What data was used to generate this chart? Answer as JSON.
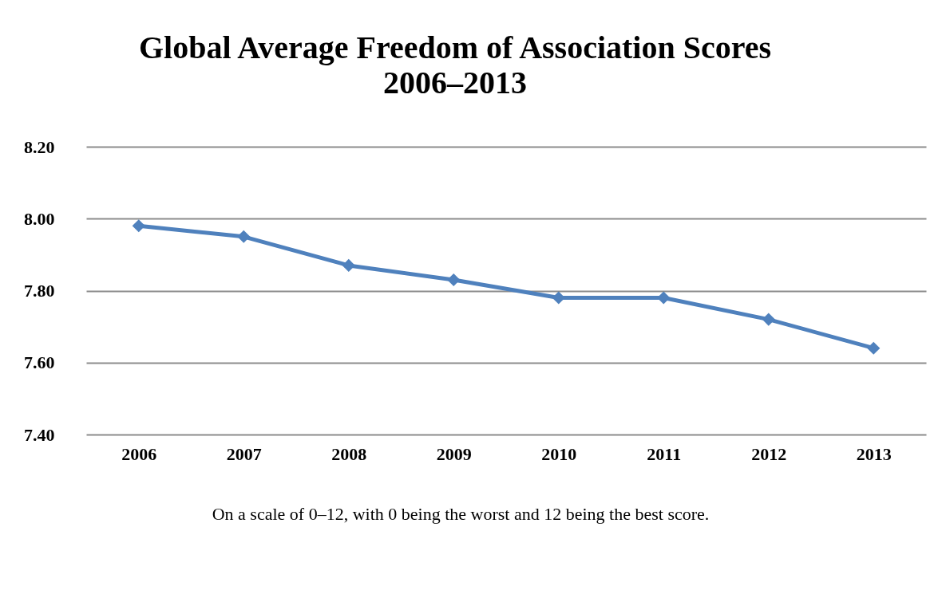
{
  "chart_data": {
    "type": "line",
    "title": "Global Average Freedom of Association Scores",
    "subtitle": "2006–2013",
    "categories": [
      "2006",
      "2007",
      "2008",
      "2009",
      "2010",
      "2011",
      "2012",
      "2013"
    ],
    "series": [
      {
        "color": "#4f81bd",
        "values": [
          7.98,
          7.95,
          7.87,
          7.83,
          7.78,
          7.78,
          7.72,
          7.64
        ]
      }
    ],
    "ylim": [
      7.4,
      8.2
    ],
    "yticks": [
      {
        "value": 7.4,
        "label": "7.40"
      },
      {
        "value": 7.6,
        "label": "7.60"
      },
      {
        "value": 7.8,
        "label": "7.80"
      },
      {
        "value": 8.0,
        "label": "8.00"
      },
      {
        "value": 8.2,
        "label": "8.20"
      }
    ],
    "grid": "y",
    "marker": "diamond",
    "line_style": "solid",
    "annotations": [
      "On a scale of 0–12, with 0 being the worst and 12 being the best score."
    ]
  }
}
